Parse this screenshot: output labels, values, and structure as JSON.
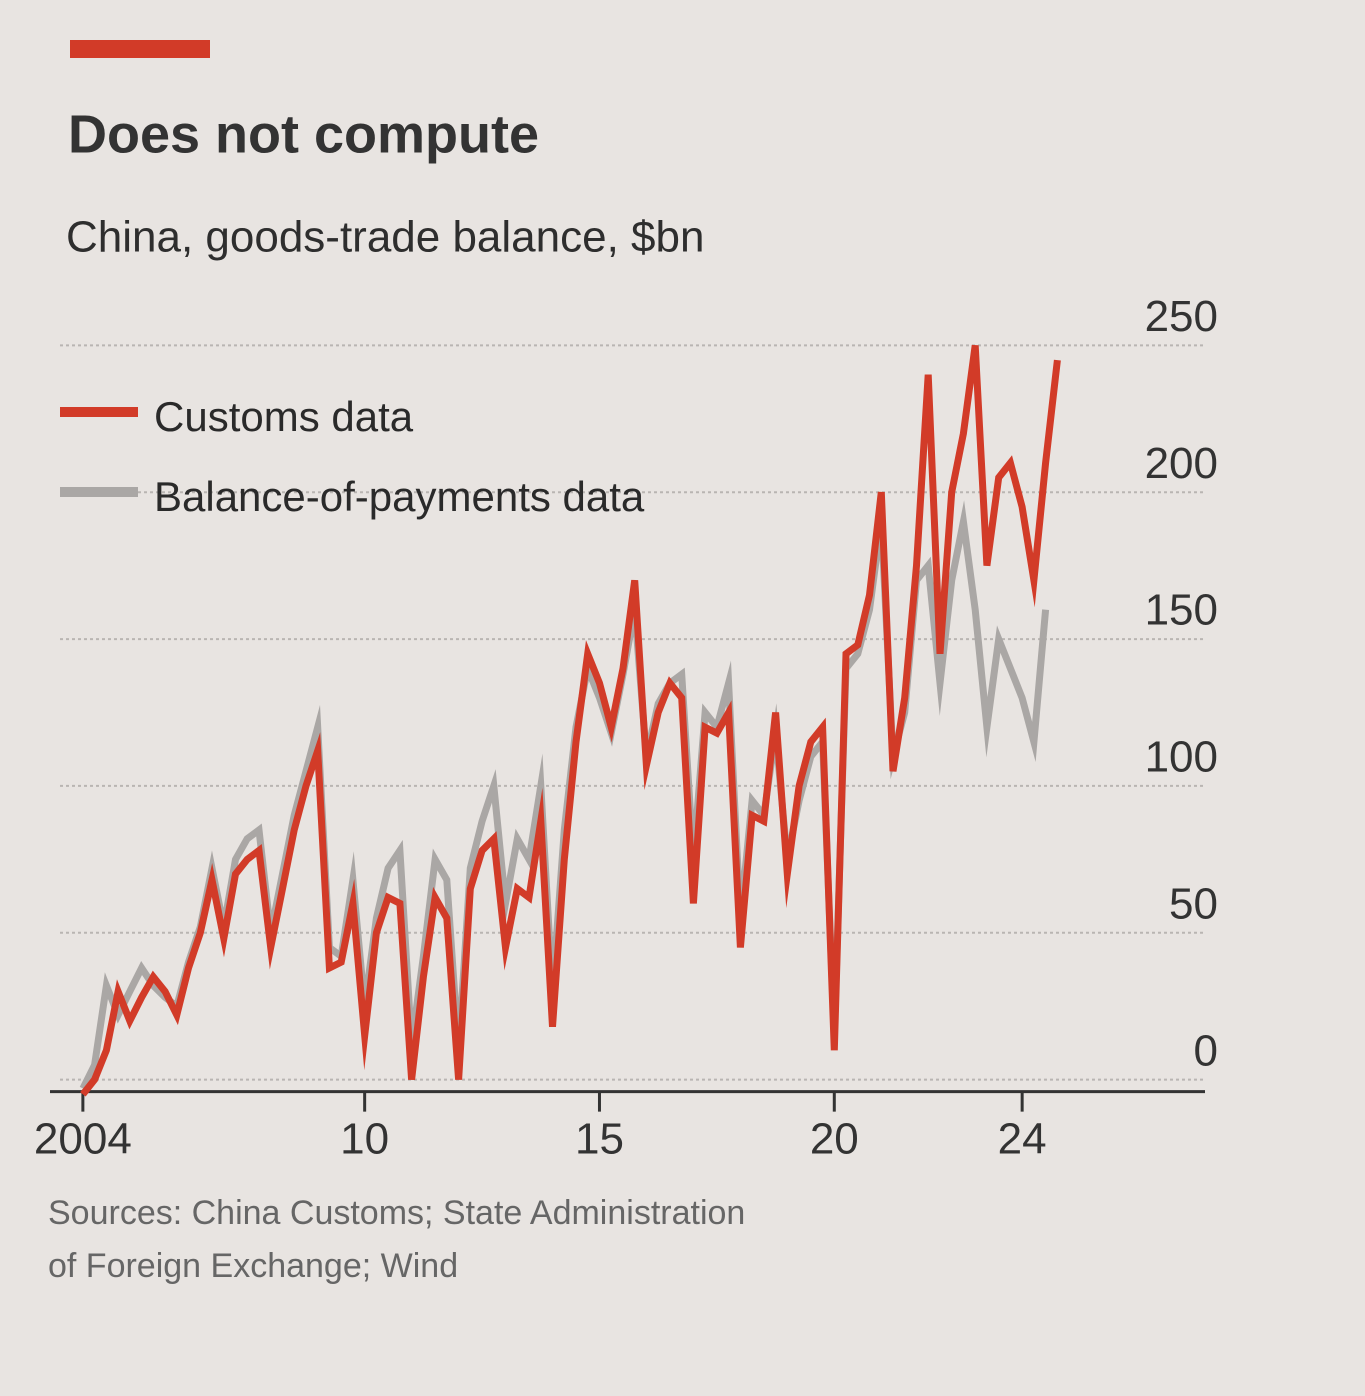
{
  "chart_data": {
    "type": "line",
    "title": "Does not compute",
    "subtitle": "China, goods-trade balance, $bn",
    "source": [
      "Sources: China Customs; State Administration",
      "of Foreign Exchange; Wind"
    ],
    "x": [
      2004,
      2004.25,
      2004.5,
      2004.75,
      2005,
      2005.25,
      2005.5,
      2005.75,
      2006,
      2006.25,
      2006.5,
      2006.75,
      2007,
      2007.25,
      2007.5,
      2007.75,
      2008,
      2008.25,
      2008.5,
      2008.75,
      2009,
      2009.25,
      2009.5,
      2009.75,
      2010,
      2010.25,
      2010.5,
      2010.75,
      2011,
      2011.25,
      2011.5,
      2011.75,
      2012,
      2012.25,
      2012.5,
      2012.75,
      2013,
      2013.25,
      2013.5,
      2013.75,
      2014,
      2014.25,
      2014.5,
      2014.75,
      2015,
      2015.25,
      2015.5,
      2015.75,
      2016,
      2016.25,
      2016.5,
      2016.75,
      2017,
      2017.25,
      2017.5,
      2017.75,
      2018,
      2018.25,
      2018.5,
      2018.75,
      2019,
      2019.25,
      2019.5,
      2019.75,
      2020,
      2020.25,
      2020.5,
      2020.75,
      2021,
      2021.25,
      2021.5,
      2021.75,
      2022,
      2022.25,
      2022.5,
      2022.75,
      2023,
      2023.25,
      2023.5,
      2023.75,
      2024,
      2024.25,
      2024.5,
      2024.75
    ],
    "series": [
      {
        "name": "Balance-of-payments data",
        "color": "#aaa7a5",
        "values": [
          -3,
          5,
          32,
          22,
          30,
          38,
          32,
          28,
          25,
          40,
          52,
          72,
          52,
          75,
          82,
          85,
          50,
          70,
          90,
          105,
          120,
          45,
          42,
          68,
          25,
          55,
          72,
          78,
          12,
          42,
          75,
          68,
          10,
          72,
          88,
          100,
          60,
          82,
          75,
          100,
          30,
          85,
          120,
          140,
          130,
          118,
          138,
          160,
          110,
          128,
          135,
          138,
          75,
          125,
          120,
          135,
          55,
          95,
          90,
          118,
          75,
          95,
          110,
          115,
          15,
          140,
          145,
          160,
          190,
          110,
          125,
          170,
          175,
          135,
          170,
          190,
          160,
          120,
          150,
          140,
          130,
          115,
          160,
          null
        ]
      },
      {
        "name": "Customs data",
        "color": "#d23b28",
        "values": [
          -5,
          0,
          10,
          30,
          20,
          28,
          35,
          30,
          22,
          38,
          50,
          68,
          48,
          70,
          75,
          78,
          45,
          65,
          85,
          100,
          112,
          38,
          40,
          60,
          15,
          50,
          62,
          60,
          0,
          35,
          62,
          55,
          0,
          65,
          78,
          82,
          45,
          65,
          62,
          88,
          18,
          75,
          115,
          145,
          135,
          120,
          140,
          170,
          107,
          125,
          135,
          130,
          60,
          120,
          118,
          125,
          45,
          90,
          88,
          125,
          70,
          100,
          115,
          120,
          10,
          145,
          148,
          165,
          200,
          105,
          130,
          175,
          240,
          145,
          200,
          220,
          250,
          175,
          205,
          210,
          195,
          170,
          210,
          245
        ]
      }
    ],
    "xlim": [
      2003.3,
      2028
    ],
    "xticks": [
      {
        "value": 2004,
        "label": "2004"
      },
      {
        "value": 2010,
        "label": "10"
      },
      {
        "value": 2015,
        "label": "15"
      },
      {
        "value": 2020,
        "label": "20"
      },
      {
        "value": 2024,
        "label": "24"
      }
    ],
    "ylim": [
      -10,
      260
    ],
    "yticks": [
      0,
      50,
      100,
      150,
      200,
      250
    ],
    "grid": true,
    "legend": "upper-left"
  }
}
